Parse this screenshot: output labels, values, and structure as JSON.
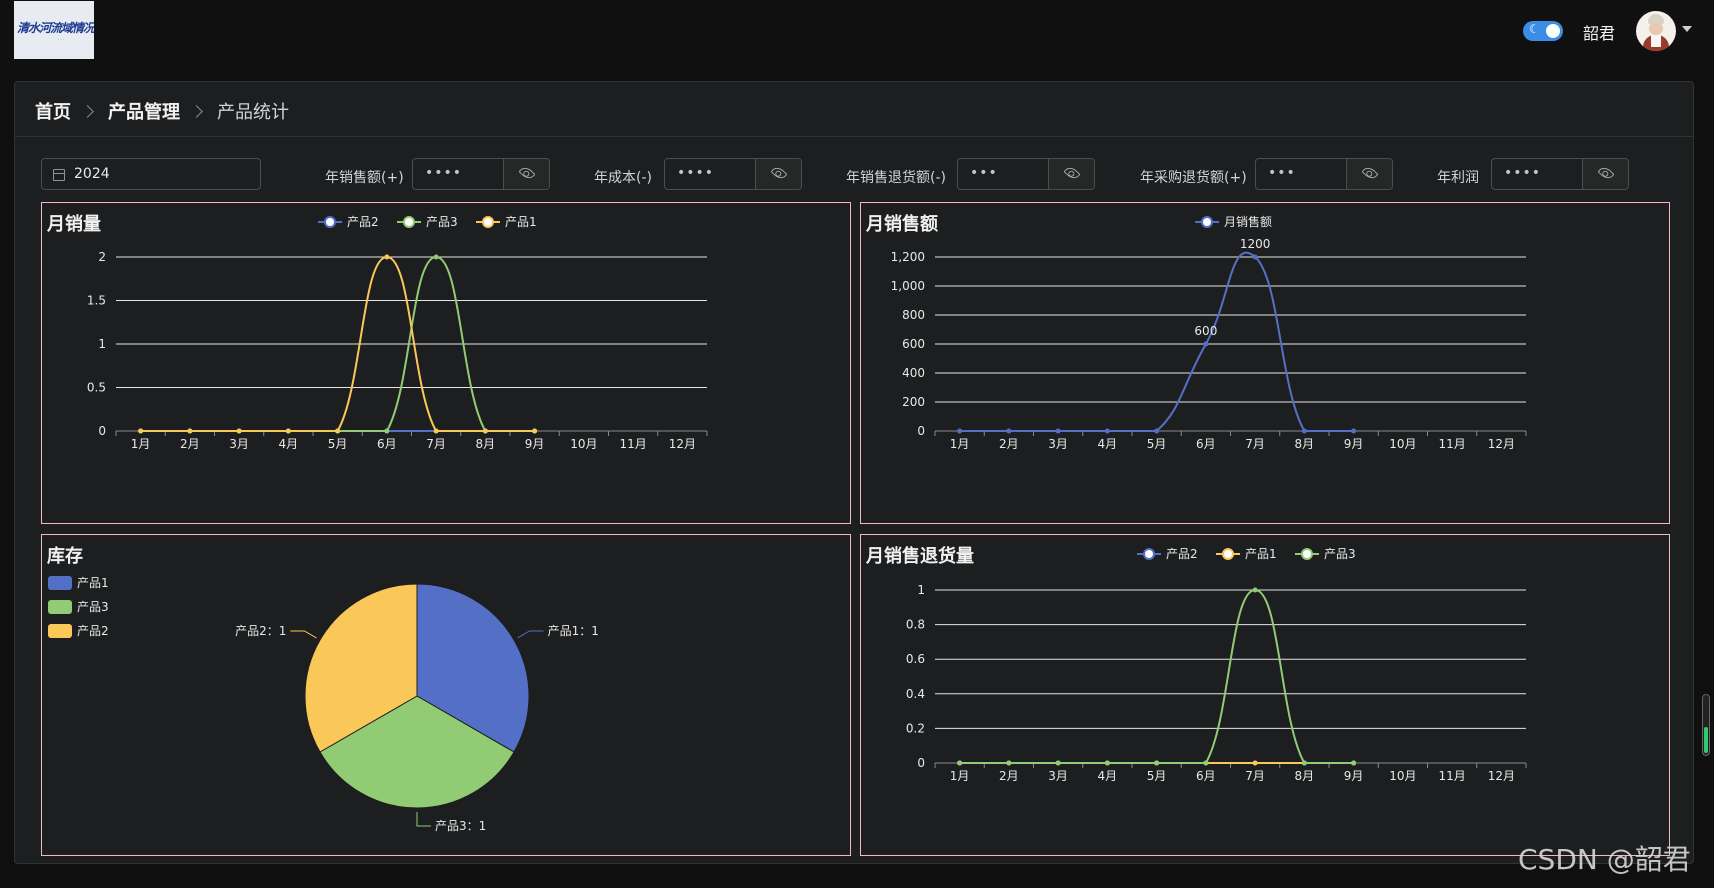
{
  "header": {
    "logo_text": "清水河流域情况",
    "theme_toggle": "dark",
    "username": "韶君"
  },
  "breadcrumb": [
    "首页",
    "产品管理",
    "产品统计"
  ],
  "filters": {
    "year": "2024",
    "stats": [
      {
        "label": "年销售额(+)",
        "value": "••••"
      },
      {
        "label": "年成本(-)",
        "value": "••••"
      },
      {
        "label": "年销售退货额(-)",
        "value": "•••"
      },
      {
        "label": "年采购退货额(+)",
        "value": "•••"
      },
      {
        "label": "年利润",
        "value": "••••"
      }
    ]
  },
  "colors": {
    "blue": "#5470c6",
    "green": "#91cc75",
    "yellow": "#fac858",
    "border": "#f2b8c6"
  },
  "chart_data": [
    {
      "title": "月销量",
      "type": "line",
      "categories": [
        "1月",
        "2月",
        "3月",
        "4月",
        "5月",
        "6月",
        "7月",
        "8月",
        "9月",
        "10月",
        "11月",
        "12月"
      ],
      "yticks": [
        "0",
        "0.5",
        "1",
        "1.5",
        "2"
      ],
      "ylim": [
        0,
        2
      ],
      "legend_position": "top-center",
      "series": [
        {
          "name": "产品2",
          "color": "#5470c6",
          "values": [
            0,
            0,
            0,
            0,
            0,
            0,
            0,
            0,
            0,
            null,
            null,
            null
          ]
        },
        {
          "name": "产品3",
          "color": "#91cc75",
          "values": [
            0,
            0,
            0,
            0,
            0,
            0,
            2,
            0,
            0,
            null,
            null,
            null
          ]
        },
        {
          "name": "产品1",
          "color": "#fac858",
          "values": [
            0,
            0,
            0,
            0,
            0,
            2,
            0,
            0,
            0,
            null,
            null,
            null
          ]
        }
      ]
    },
    {
      "title": "月销售额",
      "type": "line",
      "categories": [
        "1月",
        "2月",
        "3月",
        "4月",
        "5月",
        "6月",
        "7月",
        "8月",
        "9月",
        "10月",
        "11月",
        "12月"
      ],
      "yticks": [
        "0",
        "200",
        "400",
        "600",
        "800",
        "1,000",
        "1,200"
      ],
      "ylim": [
        0,
        1200
      ],
      "legend_position": "top-center",
      "data_labels": [
        {
          "index": 5,
          "text": "600"
        },
        {
          "index": 6,
          "text": "1200"
        }
      ],
      "series": [
        {
          "name": "月销售额",
          "color": "#5470c6",
          "values": [
            0,
            0,
            0,
            0,
            0,
            600,
            1200,
            0,
            0,
            null,
            null,
            null
          ]
        }
      ]
    },
    {
      "title": "库存",
      "type": "pie",
      "legend_position": "top-left",
      "slices": [
        {
          "name": "产品1",
          "value": 1,
          "color": "#5470c6",
          "label": "产品1：1"
        },
        {
          "name": "产品3",
          "value": 1,
          "color": "#91cc75",
          "label": "产品3：1"
        },
        {
          "name": "产品2",
          "value": 1,
          "color": "#fac858",
          "label": "产品2：1"
        }
      ]
    },
    {
      "title": "月销售退货量",
      "type": "line",
      "categories": [
        "1月",
        "2月",
        "3月",
        "4月",
        "5月",
        "6月",
        "7月",
        "8月",
        "9月",
        "10月",
        "11月",
        "12月"
      ],
      "yticks": [
        "0",
        "0.2",
        "0.4",
        "0.6",
        "0.8",
        "1"
      ],
      "ylim": [
        0,
        1
      ],
      "legend_position": "top-center",
      "series": [
        {
          "name": "产品2",
          "color": "#5470c6",
          "values": [
            0,
            0,
            0,
            0,
            0,
            0,
            0,
            0,
            0,
            null,
            null,
            null
          ]
        },
        {
          "name": "产品1",
          "color": "#fac858",
          "values": [
            0,
            0,
            0,
            0,
            0,
            0,
            0,
            0,
            0,
            null,
            null,
            null
          ]
        },
        {
          "name": "产品3",
          "color": "#91cc75",
          "values": [
            0,
            0,
            0,
            0,
            0,
            0,
            1,
            0,
            0,
            null,
            null,
            null
          ]
        }
      ]
    }
  ],
  "watermark": "CSDN @韶君"
}
